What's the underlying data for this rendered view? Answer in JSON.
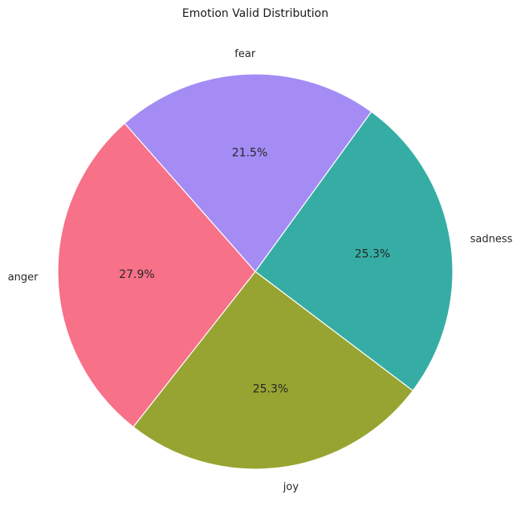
{
  "chart_data": {
    "type": "pie",
    "title": "Emotion Valid Distribution",
    "categories": [
      "sadness",
      "joy",
      "anger",
      "fear"
    ],
    "values": [
      25.3,
      25.3,
      27.9,
      21.5
    ],
    "labels": [
      "25.3%",
      "25.3%",
      "27.9%",
      "21.5%"
    ],
    "colors": [
      "#36ada4",
      "#97a431",
      "#f77189",
      "#a48cf4"
    ],
    "edge_color": "#ffffff",
    "legend": "none"
  }
}
